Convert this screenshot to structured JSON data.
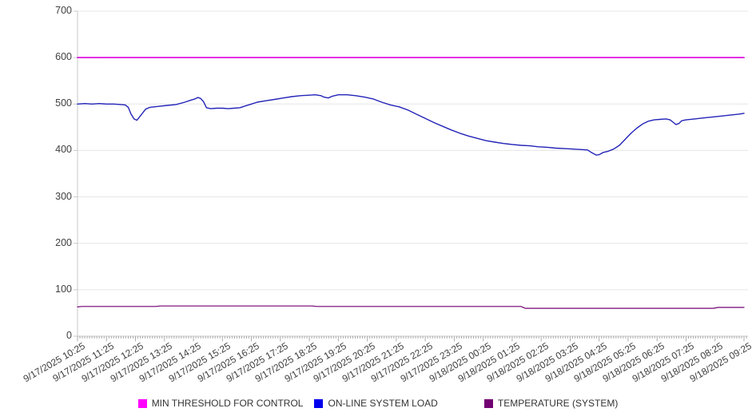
{
  "chart_data": {
    "type": "line",
    "title": "",
    "xlabel": "",
    "ylabel": "",
    "ylim": [
      0,
      700
    ],
    "y_ticks": [
      0,
      100,
      200,
      300,
      400,
      500,
      600,
      700
    ],
    "grid": "horizontal",
    "legend_position": "bottom",
    "x_tick_labels": [
      "9/17/2025 10:25",
      "9/17/2025 11:25",
      "9/17/2025 12:25",
      "9/17/2025 13:25",
      "9/17/2025 14:25",
      "9/17/2025 15:25",
      "9/17/2025 16:25",
      "9/17/2025 17:25",
      "9/17/2025 18:25",
      "9/17/2025 19:25",
      "9/17/2025 20:25",
      "9/17/2025 21:25",
      "9/17/2025 22:25",
      "9/17/2025 23:25",
      "9/18/2025 00:25",
      "9/18/2025 01:25",
      "9/18/2025 02:25",
      "9/18/2025 03:25",
      "9/18/2025 04:25",
      "9/18/2025 05:25",
      "9/18/2025 06:25",
      "9/18/2025 07:25",
      "9/18/2025 08:25",
      "9/18/2025 09:25"
    ],
    "series": [
      {
        "name": "MIN THRESHOLD FOR CONTROL",
        "swatch_color": "#ff00ff",
        "line_color": "#dd00dd",
        "line_width": 1.6,
        "points": [
          [
            0,
            600
          ],
          [
            23,
            600
          ]
        ]
      },
      {
        "name": "ON-LINE SYSTEM LOAD",
        "swatch_color": "#0000ee",
        "line_color": "#2323b8",
        "line_width": 1.4,
        "points": [
          [
            0,
            500
          ],
          [
            0.25,
            501
          ],
          [
            0.5,
            500
          ],
          [
            0.75,
            501
          ],
          [
            1.0,
            500
          ],
          [
            1.25,
            500
          ],
          [
            1.5,
            499
          ],
          [
            1.65,
            498
          ],
          [
            1.75,
            493
          ],
          [
            1.85,
            478
          ],
          [
            1.95,
            468
          ],
          [
            2.05,
            465
          ],
          [
            2.2,
            477
          ],
          [
            2.35,
            489
          ],
          [
            2.5,
            493
          ],
          [
            2.8,
            495
          ],
          [
            3.1,
            497
          ],
          [
            3.4,
            499
          ],
          [
            3.7,
            504
          ],
          [
            3.9,
            508
          ],
          [
            4.05,
            511
          ],
          [
            4.15,
            514
          ],
          [
            4.25,
            512
          ],
          [
            4.35,
            505
          ],
          [
            4.45,
            492
          ],
          [
            4.6,
            490
          ],
          [
            4.8,
            491
          ],
          [
            5.0,
            491
          ],
          [
            5.2,
            490
          ],
          [
            5.4,
            491
          ],
          [
            5.6,
            492
          ],
          [
            5.8,
            496
          ],
          [
            6.0,
            500
          ],
          [
            6.2,
            504
          ],
          [
            6.5,
            507
          ],
          [
            6.8,
            510
          ],
          [
            7.1,
            513
          ],
          [
            7.4,
            516
          ],
          [
            7.7,
            518
          ],
          [
            8.0,
            519
          ],
          [
            8.2,
            520
          ],
          [
            8.4,
            518
          ],
          [
            8.5,
            515
          ],
          [
            8.65,
            513
          ],
          [
            8.8,
            517
          ],
          [
            9.0,
            520
          ],
          [
            9.3,
            520
          ],
          [
            9.6,
            518
          ],
          [
            9.9,
            515
          ],
          [
            10.2,
            511
          ],
          [
            10.5,
            504
          ],
          [
            10.8,
            498
          ],
          [
            11.1,
            494
          ],
          [
            11.4,
            487
          ],
          [
            11.7,
            478
          ],
          [
            12.0,
            469
          ],
          [
            12.3,
            460
          ],
          [
            12.6,
            452
          ],
          [
            12.9,
            444
          ],
          [
            13.2,
            437
          ],
          [
            13.5,
            431
          ],
          [
            13.8,
            426
          ],
          [
            14.1,
            421
          ],
          [
            14.4,
            418
          ],
          [
            14.7,
            415
          ],
          [
            15.0,
            413
          ],
          [
            15.3,
            411
          ],
          [
            15.6,
            410
          ],
          [
            15.9,
            408
          ],
          [
            16.2,
            407
          ],
          [
            16.5,
            405
          ],
          [
            16.8,
            404
          ],
          [
            17.1,
            403
          ],
          [
            17.4,
            402
          ],
          [
            17.6,
            401
          ],
          [
            17.75,
            395
          ],
          [
            17.9,
            390
          ],
          [
            18.0,
            391
          ],
          [
            18.15,
            396
          ],
          [
            18.3,
            398
          ],
          [
            18.5,
            403
          ],
          [
            18.7,
            411
          ],
          [
            18.9,
            424
          ],
          [
            19.1,
            437
          ],
          [
            19.3,
            448
          ],
          [
            19.5,
            457
          ],
          [
            19.7,
            463
          ],
          [
            19.9,
            466
          ],
          [
            20.1,
            467
          ],
          [
            20.3,
            468
          ],
          [
            20.45,
            466
          ],
          [
            20.55,
            461
          ],
          [
            20.65,
            456
          ],
          [
            20.75,
            458
          ],
          [
            20.85,
            464
          ],
          [
            21.0,
            466
          ],
          [
            21.3,
            468
          ],
          [
            21.6,
            470
          ],
          [
            21.9,
            472
          ],
          [
            22.2,
            474
          ],
          [
            22.5,
            476
          ],
          [
            22.8,
            478
          ],
          [
            23.0,
            480
          ]
        ]
      },
      {
        "name": "TEMPERATURE (SYSTEM)",
        "swatch_color": "#730073",
        "line_color": "#730073",
        "line_width": 1.2,
        "points": [
          [
            0,
            63
          ],
          [
            0.15,
            64
          ],
          [
            2.7,
            64
          ],
          [
            2.85,
            65
          ],
          [
            8.1,
            65
          ],
          [
            8.25,
            64
          ],
          [
            15.3,
            64
          ],
          [
            15.45,
            60
          ],
          [
            21.95,
            60
          ],
          [
            22.1,
            62
          ],
          [
            23,
            62
          ]
        ]
      }
    ]
  }
}
